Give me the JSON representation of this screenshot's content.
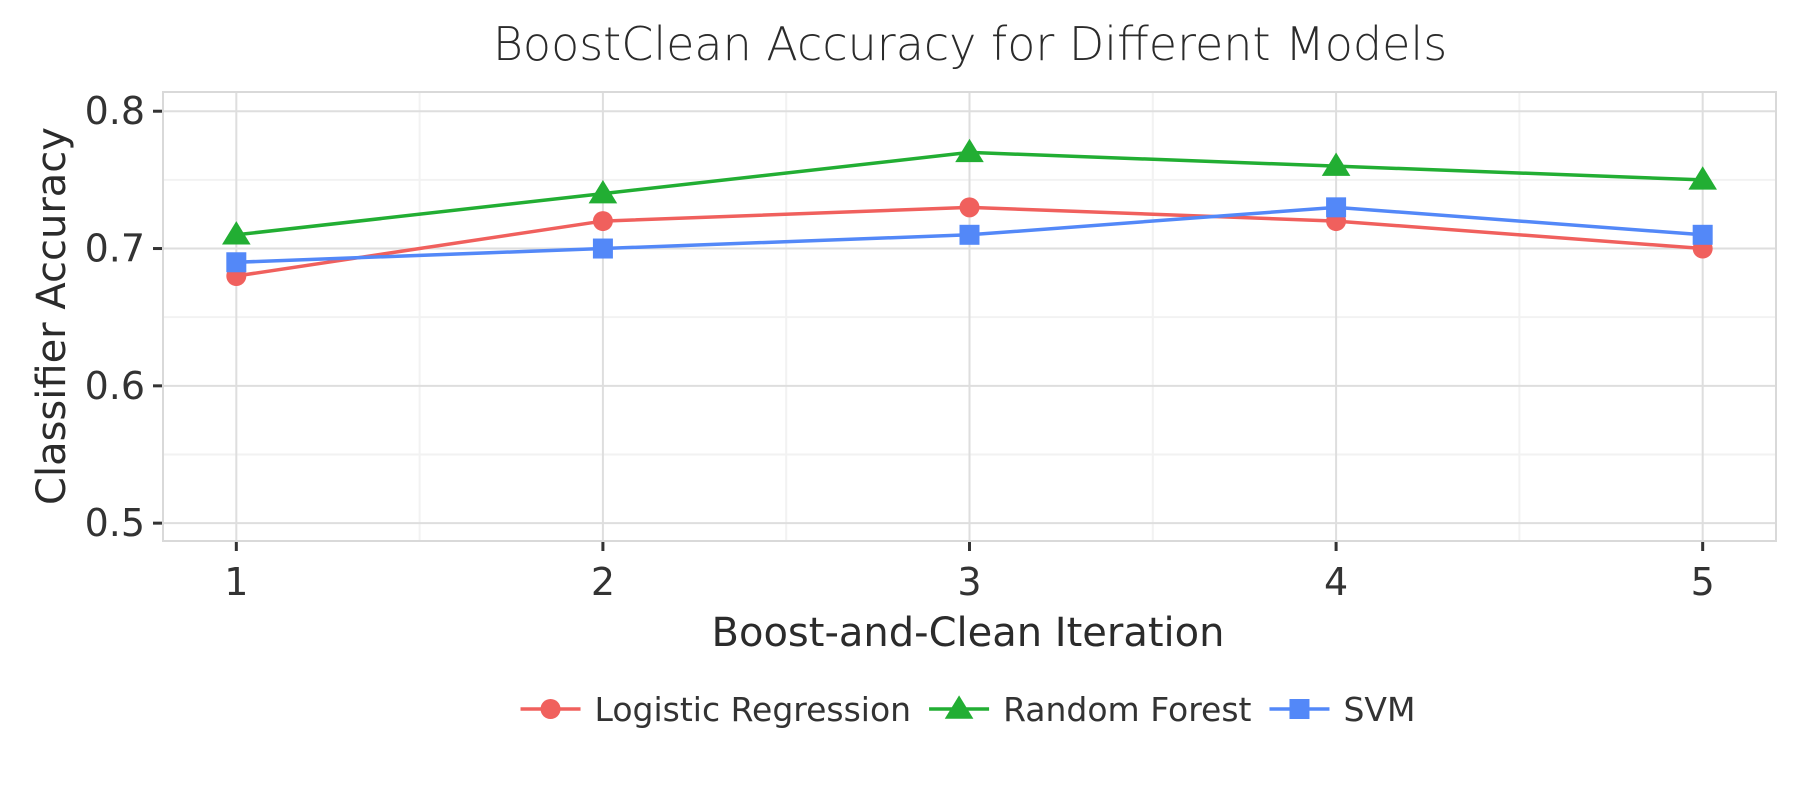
{
  "chart_data": {
    "type": "line",
    "title": "BoostClean Accuracy for Different Models",
    "xlabel": "Boost-and-Clean Iteration",
    "ylabel": "Classifier Accuracy",
    "x": [
      1,
      2,
      3,
      4,
      5
    ],
    "xlim": [
      0.8,
      5.2
    ],
    "ylim": [
      0.487,
      0.814
    ],
    "xticks": [
      "1",
      "2",
      "3",
      "4",
      "5"
    ],
    "yticks": [
      "0.5",
      "0.6",
      "0.7",
      "0.8"
    ],
    "grid": true,
    "legend_position": "bottom",
    "series": [
      {
        "name": "Logistic Regression",
        "values": [
          0.68,
          0.72,
          0.73,
          0.72,
          0.7
        ],
        "color": "#F0605D",
        "marker": "circle"
      },
      {
        "name": "Random Forest",
        "values": [
          0.71,
          0.74,
          0.77,
          0.76,
          0.75
        ],
        "color": "#22AE33",
        "marker": "triangle"
      },
      {
        "name": "SVM",
        "values": [
          0.69,
          0.7,
          0.71,
          0.73,
          0.71
        ],
        "color": "#5388F8",
        "marker": "square"
      }
    ]
  }
}
